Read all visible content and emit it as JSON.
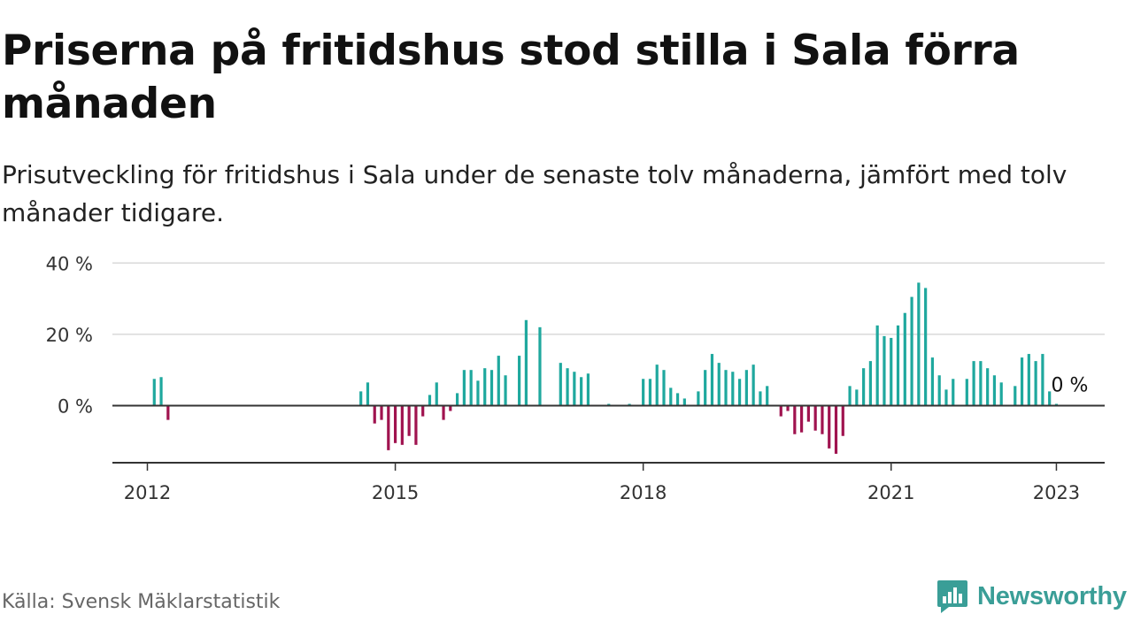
{
  "title": "Priserna på fritidshus stod stilla i Sala förra månaden",
  "subtitle": "Prisutveckling för fritidshus i Sala under de senaste tolv månaderna, jämfört med tolv månader tidigare.",
  "source": "Källa: Svensk Mäklarstatistik",
  "brand": "Newsworthy",
  "colors": {
    "positive": "#1fa89e",
    "negative": "#a0134f",
    "grid": "#d9d9d9",
    "axis": "#333333",
    "brand": "#3a9e97"
  },
  "chart_data": {
    "type": "bar",
    "unit": "%",
    "ylim": [
      -16,
      40
    ],
    "yticks": [
      0,
      20,
      40
    ],
    "ytick_labels": [
      "0 %",
      "20 %",
      "40 %"
    ],
    "xlim": [
      "2011-10",
      "2023-06"
    ],
    "xticks": [
      "2012-01",
      "2015-01",
      "2018-01",
      "2021-01",
      "2023-01"
    ],
    "xtick_labels": [
      "2012",
      "2015",
      "2018",
      "2021",
      "2023"
    ],
    "grid": true,
    "end_label": "0 %",
    "series": [
      {
        "values": [
          {
            "x": "2012-02",
            "y": 7.5
          },
          {
            "x": "2012-03",
            "y": 8
          },
          {
            "x": "2012-04",
            "y": -4
          },
          {
            "x": "2014-08",
            "y": 4
          },
          {
            "x": "2014-09",
            "y": 6.5
          },
          {
            "x": "2014-10",
            "y": -5
          },
          {
            "x": "2014-11",
            "y": -4
          },
          {
            "x": "2014-12",
            "y": -12.5
          },
          {
            "x": "2015-01",
            "y": -10.5
          },
          {
            "x": "2015-02",
            "y": -11
          },
          {
            "x": "2015-03",
            "y": -8.5
          },
          {
            "x": "2015-04",
            "y": -11
          },
          {
            "x": "2015-05",
            "y": -3
          },
          {
            "x": "2015-06",
            "y": 3
          },
          {
            "x": "2015-07",
            "y": 6.5
          },
          {
            "x": "2015-08",
            "y": -4
          },
          {
            "x": "2015-09",
            "y": -1.5
          },
          {
            "x": "2015-10",
            "y": 3.5
          },
          {
            "x": "2015-11",
            "y": 10
          },
          {
            "x": "2015-12",
            "y": 10
          },
          {
            "x": "2016-01",
            "y": 7
          },
          {
            "x": "2016-02",
            "y": 10.5
          },
          {
            "x": "2016-03",
            "y": 10
          },
          {
            "x": "2016-04",
            "y": 14
          },
          {
            "x": "2016-05",
            "y": 8.5
          },
          {
            "x": "2016-07",
            "y": 14
          },
          {
            "x": "2016-08",
            "y": 24
          },
          {
            "x": "2016-10",
            "y": 22
          },
          {
            "x": "2017-01",
            "y": 12
          },
          {
            "x": "2017-02",
            "y": 10.5
          },
          {
            "x": "2017-03",
            "y": 9.5
          },
          {
            "x": "2017-04",
            "y": 8
          },
          {
            "x": "2017-05",
            "y": 9
          },
          {
            "x": "2017-08",
            "y": 0.5
          },
          {
            "x": "2017-11",
            "y": 0.5
          },
          {
            "x": "2018-01",
            "y": 7.5
          },
          {
            "x": "2018-02",
            "y": 7.5
          },
          {
            "x": "2018-03",
            "y": 11.5
          },
          {
            "x": "2018-04",
            "y": 10
          },
          {
            "x": "2018-05",
            "y": 5
          },
          {
            "x": "2018-06",
            "y": 3.5
          },
          {
            "x": "2018-07",
            "y": 2
          },
          {
            "x": "2018-09",
            "y": 4
          },
          {
            "x": "2018-10",
            "y": 10
          },
          {
            "x": "2018-11",
            "y": 14.5
          },
          {
            "x": "2018-12",
            "y": 12
          },
          {
            "x": "2019-01",
            "y": 10
          },
          {
            "x": "2019-02",
            "y": 9.5
          },
          {
            "x": "2019-03",
            "y": 7.5
          },
          {
            "x": "2019-04",
            "y": 10
          },
          {
            "x": "2019-05",
            "y": 11.5
          },
          {
            "x": "2019-06",
            "y": 4
          },
          {
            "x": "2019-07",
            "y": 5.5
          },
          {
            "x": "2019-09",
            "y": -3
          },
          {
            "x": "2019-10",
            "y": -1.5
          },
          {
            "x": "2019-11",
            "y": -8
          },
          {
            "x": "2019-12",
            "y": -7.5
          },
          {
            "x": "2020-01",
            "y": -4.5
          },
          {
            "x": "2020-02",
            "y": -7
          },
          {
            "x": "2020-03",
            "y": -8
          },
          {
            "x": "2020-04",
            "y": -12
          },
          {
            "x": "2020-05",
            "y": -13.5
          },
          {
            "x": "2020-06",
            "y": -8.5
          },
          {
            "x": "2020-07",
            "y": 5.5
          },
          {
            "x": "2020-08",
            "y": 4.5
          },
          {
            "x": "2020-09",
            "y": 10.5
          },
          {
            "x": "2020-10",
            "y": 12.5
          },
          {
            "x": "2020-11",
            "y": 22.5
          },
          {
            "x": "2020-12",
            "y": 19.5
          },
          {
            "x": "2021-01",
            "y": 19
          },
          {
            "x": "2021-02",
            "y": 22.5
          },
          {
            "x": "2021-03",
            "y": 26
          },
          {
            "x": "2021-04",
            "y": 30.5
          },
          {
            "x": "2021-05",
            "y": 34.5
          },
          {
            "x": "2021-06",
            "y": 33
          },
          {
            "x": "2021-07",
            "y": 13.5
          },
          {
            "x": "2021-08",
            "y": 8.5
          },
          {
            "x": "2021-09",
            "y": 4.5
          },
          {
            "x": "2021-10",
            "y": 7.5
          },
          {
            "x": "2021-12",
            "y": 7.5
          },
          {
            "x": "2022-01",
            "y": 12.5
          },
          {
            "x": "2022-02",
            "y": 12.5
          },
          {
            "x": "2022-03",
            "y": 10.5
          },
          {
            "x": "2022-04",
            "y": 8.5
          },
          {
            "x": "2022-05",
            "y": 6.5
          },
          {
            "x": "2022-07",
            "y": 5.5
          },
          {
            "x": "2022-08",
            "y": 13.5
          },
          {
            "x": "2022-09",
            "y": 14.5
          },
          {
            "x": "2022-10",
            "y": 12.5
          },
          {
            "x": "2022-11",
            "y": 14.5
          },
          {
            "x": "2022-12",
            "y": 4
          },
          {
            "x": "2023-01",
            "y": 0.5
          }
        ]
      }
    ]
  }
}
